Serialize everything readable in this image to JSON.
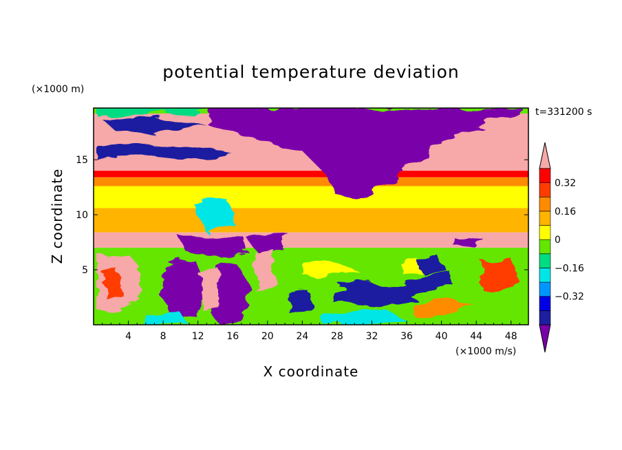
{
  "chart_data": {
    "type": "heatmap",
    "title": "potential temperature deviation",
    "xlabel": "X coordinate",
    "ylabel": "Z coordinate",
    "x_unit": "(×1000 m/s)",
    "y_unit": "(×1000 m)",
    "time_label": "t=331200 s",
    "xlim": [
      0,
      50
    ],
    "ylim": [
      0,
      19.7
    ],
    "x_ticks": [
      "4",
      "8",
      "12",
      "16",
      "20",
      "24",
      "28",
      "32",
      "36",
      "40",
      "44",
      "48"
    ],
    "y_ticks": [
      "5",
      "10",
      "15"
    ],
    "colorbar": {
      "levels": [
        -0.48,
        -0.4,
        -0.32,
        -0.24,
        -0.16,
        -0.08,
        0,
        0.08,
        0.16,
        0.24,
        0.32,
        0.4,
        0.48
      ],
      "tick_labels": [
        "0.32",
        "0.16",
        "0",
        "−0.16",
        "−0.32"
      ],
      "colors": [
        "#7a00aa",
        "#1e1ea0",
        "#0000e6",
        "#0096ff",
        "#00e6e6",
        "#00dc82",
        "#64e600",
        "#ffff00",
        "#ffb400",
        "#ff8c00",
        "#ff3c00",
        "#ff0000",
        "#f7a8a8"
      ]
    },
    "bands": [
      {
        "z_range": [
          19.2,
          19.7
        ],
        "value": 0.0
      },
      {
        "z_range": [
          14.0,
          19.2
        ],
        "value": 0.5
      },
      {
        "z_range": [
          13.4,
          14.0
        ],
        "value": 0.36
      },
      {
        "z_range": [
          12.6,
          13.4
        ],
        "value": 0.2
      },
      {
        "z_range": [
          10.6,
          12.6
        ],
        "value": 0.06
      },
      {
        "z_range": [
          8.4,
          10.6
        ],
        "value": 0.1
      },
      {
        "z_range": [
          7.0,
          8.4
        ],
        "value": 0.5
      },
      {
        "z_range": [
          0,
          7.0
        ],
        "value": 0.0
      }
    ]
  }
}
